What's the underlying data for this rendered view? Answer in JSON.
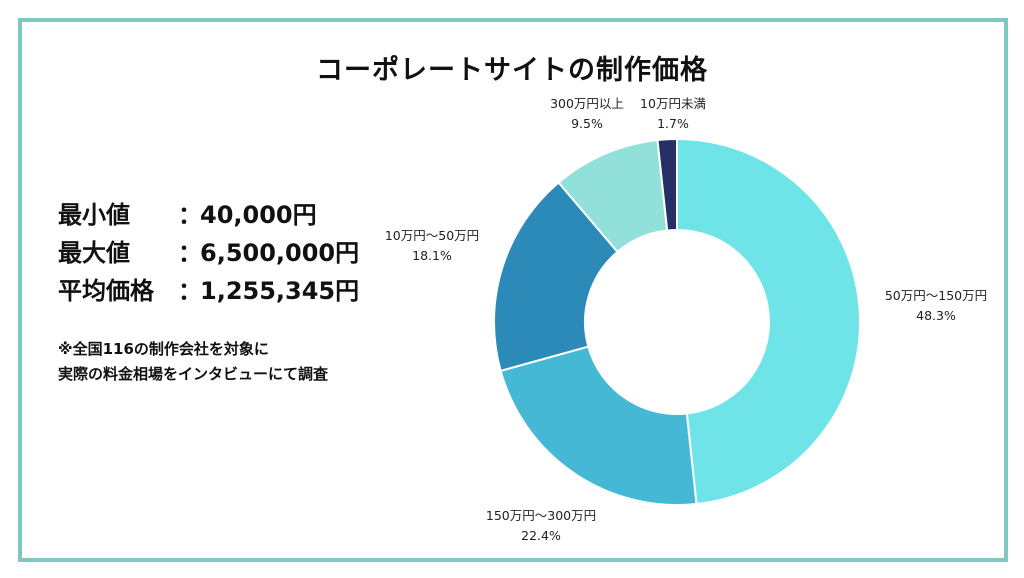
{
  "title": "コーポレートサイトの制作価格",
  "stats": [
    {
      "label": "最小値",
      "sep": "：",
      "value": "40,000円"
    },
    {
      "label": "最大値",
      "sep": "：",
      "value": "6,500,000円"
    },
    {
      "label": "平均価格",
      "sep": "：",
      "value": "1,255,345円"
    }
  ],
  "note": [
    "※全国116の制作会社を対象に",
    "実際の料金相場をインタビューにて調査"
  ],
  "colors": {
    "frame": "#7ec8c4"
  },
  "chart_data": {
    "type": "pie",
    "variant": "donut",
    "title": "",
    "categories": [
      "50万円〜150万円",
      "150万円〜300万円",
      "10万円〜50万円",
      "300万円以上",
      "10万円未満"
    ],
    "values": [
      48.3,
      22.4,
      18.1,
      9.5,
      1.7
    ],
    "value_labels": [
      "48.3%",
      "22.4%",
      "18.1%",
      "9.5%",
      "1.7%"
    ],
    "colors": [
      "#6ee3e8",
      "#45b8d6",
      "#2c8ab8",
      "#92e0da",
      "#262f66"
    ],
    "start": "12 o'clock, clockwise"
  }
}
